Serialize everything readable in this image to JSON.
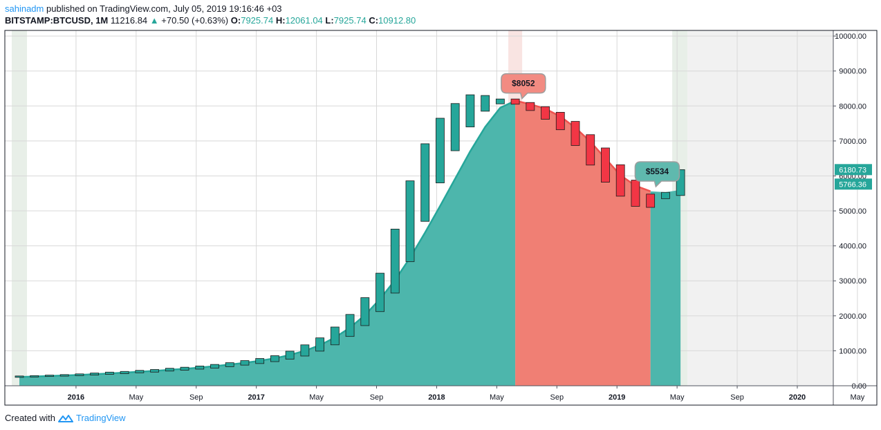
{
  "header": {
    "author": "sahinadm",
    "published_text": "published on TradingView.com, July 05, 2019 19:16:46 +03",
    "symbol": "BITSTAMP:BTCUSD, 1M",
    "last": "11216.84",
    "change": "+70.50 (+0.63%)",
    "open_label": "O:",
    "open": "7925.74",
    "high_label": "H:",
    "high": "12061.04",
    "low_label": "L:",
    "low": "7925.74",
    "close_label": "C:",
    "close": "10912.80"
  },
  "footer": {
    "created_with": "Created with",
    "brand": "TradingView"
  },
  "colors": {
    "up": "#26a69a",
    "down": "#f23645",
    "green_area": "#4db6ac",
    "red_area": "#f07f74",
    "accent_line_red": "#ef5350"
  },
  "chart_data": {
    "type": "candlestick",
    "x_tick_labels": [
      "2016",
      "May",
      "Sep",
      "2017",
      "May",
      "Sep",
      "2018",
      "May",
      "Sep",
      "2019",
      "May",
      "Sep",
      "2020",
      "May"
    ],
    "y_tick_labels": [
      "10000.00",
      "9000.00",
      "8000.00",
      "7000.00",
      "6000.00",
      "5000.00",
      "4000.00",
      "3000.00",
      "2000.00",
      "1000.00",
      "0.00"
    ],
    "ylim": [
      0,
      10200
    ],
    "candles": [
      {
        "o": 250,
        "c": 280
      },
      {
        "o": 255,
        "c": 290
      },
      {
        "o": 265,
        "c": 305
      },
      {
        "o": 275,
        "c": 320
      },
      {
        "o": 290,
        "c": 340
      },
      {
        "o": 305,
        "c": 365
      },
      {
        "o": 325,
        "c": 390
      },
      {
        "o": 345,
        "c": 410
      },
      {
        "o": 370,
        "c": 440
      },
      {
        "o": 390,
        "c": 465
      },
      {
        "o": 420,
        "c": 500
      },
      {
        "o": 445,
        "c": 530
      },
      {
        "o": 475,
        "c": 565
      },
      {
        "o": 505,
        "c": 610
      },
      {
        "o": 545,
        "c": 660
      },
      {
        "o": 590,
        "c": 720
      },
      {
        "o": 635,
        "c": 780
      },
      {
        "o": 690,
        "c": 860
      },
      {
        "o": 760,
        "c": 990
      },
      {
        "o": 850,
        "c": 1170
      },
      {
        "o": 990,
        "c": 1370
      },
      {
        "o": 1170,
        "c": 1680
      },
      {
        "o": 1410,
        "c": 2040
      },
      {
        "o": 1720,
        "c": 2520
      },
      {
        "o": 2120,
        "c": 3220
      },
      {
        "o": 2650,
        "c": 4480
      },
      {
        "o": 3550,
        "c": 5860
      },
      {
        "o": 4700,
        "c": 6920
      },
      {
        "o": 5800,
        "c": 7650
      },
      {
        "o": 6720,
        "c": 8070
      },
      {
        "o": 7400,
        "c": 8320
      },
      {
        "o": 7850,
        "c": 8300
      },
      {
        "o": 8060,
        "c": 8200
      },
      {
        "o": 8200,
        "c": 8050
      },
      {
        "o": 8100,
        "c": 7870
      },
      {
        "o": 7980,
        "c": 7620
      },
      {
        "o": 7820,
        "c": 7320
      },
      {
        "o": 7560,
        "c": 6870
      },
      {
        "o": 7180,
        "c": 6310
      },
      {
        "o": 6800,
        "c": 5820
      },
      {
        "o": 6320,
        "c": 5420
      },
      {
        "o": 5880,
        "c": 5130
      },
      {
        "o": 5480,
        "c": 5100
      },
      {
        "o": 5350,
        "c": 5530
      },
      {
        "o": 5440,
        "c": 6180
      }
    ],
    "smooth_line": [
      250,
      265,
      280,
      295,
      310,
      330,
      350,
      375,
      400,
      425,
      455,
      485,
      520,
      560,
      605,
      655,
      715,
      785,
      880,
      1000,
      1160,
      1380,
      1660,
      2020,
      2480,
      3020,
      3660,
      4380,
      5140,
      5920,
      6700,
      7400,
      7950,
      8150,
      8052,
      7920,
      7700,
      7380,
      6980,
      6500,
      6020,
      5720,
      5560,
      5534,
      5600
    ],
    "callouts": [
      {
        "label": "$8052",
        "value": 8052,
        "color": "red"
      },
      {
        "label": "$5534",
        "value": 5534,
        "color": "green"
      }
    ],
    "price_tags": [
      {
        "label": "6180.73",
        "value": 6180.73
      },
      {
        "label": "5766.36",
        "value": 5766.36
      }
    ]
  }
}
